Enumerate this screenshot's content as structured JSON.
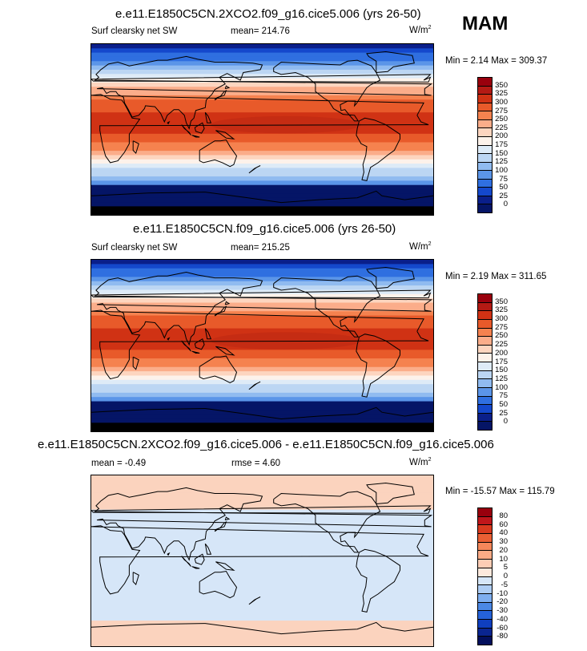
{
  "season": "MAM",
  "panels": [
    {
      "title": "e.e11.E1850C5CN.2XCO2.f09_g16.cice5.006 (yrs 26-50)",
      "variable": "Surf clearsky net SW",
      "stat1": "mean= 214.76",
      "stat2": "",
      "units": "W/m",
      "units_sup": "2",
      "minmax": "Min =  2.14 Max = 309.37",
      "levels": [
        "350",
        "325",
        "300",
        "275",
        "250",
        "225",
        "200",
        "175",
        "150",
        "125",
        "100",
        "75",
        "50",
        "25",
        "0"
      ],
      "colors": [
        "#99000d",
        "#b41a14",
        "#d03214",
        "#e85a2a",
        "#f5824f",
        "#fbad8a",
        "#fdd5bf",
        "#fdf2ea",
        "#deebf7",
        "#bcd6f3",
        "#90bbf0",
        "#5b95e8",
        "#2f6fe0",
        "#1448cc",
        "#0a1f8a",
        "#051566"
      ],
      "kind": "sw"
    },
    {
      "title": "e.e11.E1850C5CN.f09_g16.cice5.006 (yrs 26-50)",
      "variable": "Surf clearsky net SW",
      "stat1": "mean= 215.25",
      "stat2": "",
      "units": "W/m",
      "units_sup": "2",
      "minmax": "Min =  2.19 Max = 311.65",
      "levels": [
        "350",
        "325",
        "300",
        "275",
        "250",
        "225",
        "200",
        "175",
        "150",
        "125",
        "100",
        "75",
        "50",
        "25",
        "0"
      ],
      "colors": [
        "#99000d",
        "#b41a14",
        "#d03214",
        "#e85a2a",
        "#f5824f",
        "#fbad8a",
        "#fdd5bf",
        "#fdf2ea",
        "#deebf7",
        "#bcd6f3",
        "#90bbf0",
        "#5b95e8",
        "#2f6fe0",
        "#1448cc",
        "#0a1f8a",
        "#051566"
      ],
      "kind": "sw"
    },
    {
      "title": "e.e11.E1850C5CN.2XCO2.f09_g16.cice5.006 - e.e11.E1850C5CN.f09_g16.cice5.006",
      "variable": "",
      "stat1": "mean =  -0.49",
      "stat2": "rmse =  4.60",
      "units": "W/m",
      "units_sup": "2",
      "minmax": "Min = -15.57 Max = 115.79",
      "levels": [
        "80",
        "60",
        "40",
        "30",
        "20",
        "10",
        "5",
        "0",
        "-5",
        "-10",
        "-20",
        "-30",
        "-40",
        "-60",
        "-80"
      ],
      "colors": [
        "#99000d",
        "#c0161b",
        "#d93a1f",
        "#ea5f34",
        "#f5875a",
        "#fbab86",
        "#fdcdb5",
        "#fde9dd",
        "#d6e6f8",
        "#aecdf4",
        "#7eaef0",
        "#4b88e5",
        "#2562d8",
        "#0f3fbf",
        "#0a2590",
        "#030f5c"
      ],
      "kind": "diff"
    }
  ]
}
